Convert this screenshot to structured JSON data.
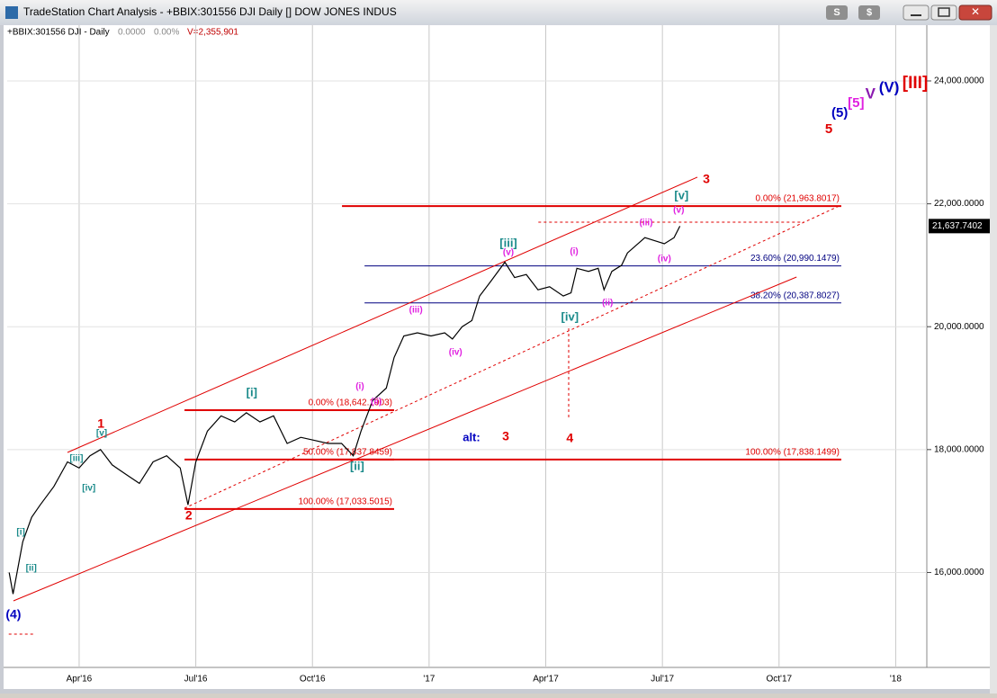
{
  "window": {
    "title": "TradeStation Chart Analysis - +BBIX:301556 DJI Daily [] DOW JONES INDUS",
    "buttons": [
      "S",
      "$"
    ]
  },
  "info": {
    "symbol": "+BBIX:301556 DJI - Daily",
    "change": "0.0000",
    "change_pct": "0.00%",
    "volume": "V=2,355,901"
  },
  "chart_data": {
    "type": "line",
    "x": [
      1.2,
      1.3,
      1.55,
      1.78,
      2.0,
      2.35,
      2.7,
      3.0,
      3.28,
      3.55,
      3.85,
      4.2,
      4.55,
      4.9,
      5.25,
      5.6,
      5.8,
      6.0,
      6.3,
      6.65,
      7.0,
      7.3,
      7.65,
      8.0,
      8.35,
      8.7,
      9.05,
      9.4,
      9.75,
      10.05,
      10.25,
      10.55,
      10.9,
      11.1,
      11.35,
      11.7,
      12.05,
      12.4,
      12.6,
      12.85,
      13.1,
      13.3,
      13.6,
      13.95,
      14.2,
      14.5,
      14.8,
      15.1,
      15.45,
      15.65,
      15.8,
      16.1,
      16.35,
      16.5,
      16.7,
      16.95,
      17.1,
      17.55,
      17.8,
      18.05,
      18.3,
      18.45
    ],
    "series": [
      {
        "color": "#000000",
        "values": [
          16000,
          15650,
          16500,
          16900,
          17100,
          17400,
          17800,
          17700,
          17900,
          18000,
          17750,
          17600,
          17450,
          17800,
          17900,
          17700,
          17100,
          17800,
          18300,
          18550,
          18450,
          18600,
          18450,
          18550,
          18100,
          18200,
          18150,
          18100,
          18100,
          17900,
          18300,
          18800,
          19000,
          19500,
          19850,
          19900,
          19850,
          19900,
          19800,
          20000,
          20100,
          20500,
          20750,
          21050,
          20800,
          20850,
          20600,
          20650,
          20500,
          20550,
          20950,
          20900,
          20950,
          20600,
          20900,
          21000,
          21200,
          21450,
          21400,
          21350,
          21450,
          21637
        ]
      }
    ],
    "xlim": [
      1.15,
      24.8
    ],
    "ylim": [
      14455,
      24673
    ],
    "xticks": [
      {
        "value": 3,
        "label": "Apr'16"
      },
      {
        "value": 6,
        "label": "Jul'16"
      },
      {
        "value": 9,
        "label": "Oct'16"
      },
      {
        "value": 12,
        "label": "'17"
      },
      {
        "value": 15,
        "label": "Apr'17"
      },
      {
        "value": 18,
        "label": "Jul'17"
      },
      {
        "value": 21,
        "label": "Oct'17"
      },
      {
        "value": 24,
        "label": "'18"
      }
    ],
    "yticks": [
      {
        "value": 16000,
        "label": "16,000.0000"
      },
      {
        "value": 18000,
        "label": "18,000.0000"
      },
      {
        "value": 20000,
        "label": "20,000.0000"
      },
      {
        "value": 22000,
        "label": "22,000.0000"
      },
      {
        "value": 24000,
        "label": "24,000.0000"
      }
    ],
    "grid": true,
    "last_price": {
      "value": 21637.7402,
      "label": "21,637.7402"
    },
    "levels": [
      {
        "label": "0.00% (21,963.8017)",
        "value": 21963.8017,
        "from": 9.76,
        "to": 22.6,
        "color": "#e00000"
      },
      {
        "label": "23.60% (20,990.1479)",
        "value": 20990.1479,
        "from": 10.34,
        "to": 22.6,
        "color": "#000080"
      },
      {
        "label": "38.20% (20,387.8027)",
        "value": 20387.8027,
        "from": 10.34,
        "to": 22.6,
        "color": "#000080"
      },
      {
        "label": "0.00% (18,642.1903)",
        "value": 18642.1903,
        "from": 5.71,
        "to": 11.1,
        "color": "#e00000"
      },
      {
        "label": "50.00% (17,837.8459)",
        "value": 17837.8459,
        "from": 5.71,
        "to": 11.1,
        "color": "#e00000"
      },
      {
        "label": "100.00% (17,838.1499)",
        "value": 17838.1499,
        "from": 9.2,
        "to": 22.6,
        "color": "#e00000"
      },
      {
        "label": "100.00% (17,033.5015)",
        "value": 17033.5015,
        "from": 5.71,
        "to": 11.1,
        "color": "#e00000"
      }
    ],
    "lines": [
      {
        "x": [
          2.7,
          18.9
        ],
        "y": [
          17954,
          22434
        ],
        "color": "#e00000",
        "dashed": false
      },
      {
        "x": [
          1.31,
          21.45
        ],
        "y": [
          15538,
          20808
        ],
        "color": "#e00000",
        "dashed": false
      },
      {
        "x": [
          5.71,
          22.6
        ],
        "y": [
          17046,
          21980
        ],
        "color": "#e00000",
        "dashed": true
      },
      {
        "x": [
          15.59,
          15.59
        ],
        "y": [
          19974,
          18510
        ],
        "color": "#e00000",
        "dashed": true
      },
      {
        "x": [
          14.81,
          21.64
        ],
        "y": [
          21702,
          21702
        ],
        "color": "#e00000",
        "dashed": true
      },
      {
        "x": [
          1.19,
          1.84
        ],
        "y": [
          14996,
          14996
        ],
        "color": "#e00000",
        "dashed": true
      }
    ],
    "annotations": [
      {
        "text": "(4)",
        "x": 1.31,
        "y": 15304,
        "color": "#0000c0",
        "size": 14
      },
      {
        "text": "[i]",
        "x": 1.5,
        "y": 16651,
        "color": "#1a8a8a",
        "size": 10
      },
      {
        "text": "[ii]",
        "x": 1.77,
        "y": 16065,
        "color": "#1a8a8a",
        "size": 10
      },
      {
        "text": "[iii]",
        "x": 2.93,
        "y": 17851,
        "color": "#1a8a8a",
        "size": 10
      },
      {
        "text": "[iv]",
        "x": 3.25,
        "y": 17368,
        "color": "#1a8a8a",
        "size": 10
      },
      {
        "text": "[v]",
        "x": 3.58,
        "y": 18261,
        "color": "#1a8a8a",
        "size": 10
      },
      {
        "text": "1",
        "x": 3.56,
        "y": 18408,
        "color": "#e00000",
        "size": 14
      },
      {
        "text": "2",
        "x": 5.82,
        "y": 16914,
        "color": "#e00000",
        "size": 14
      },
      {
        "text": "[i]",
        "x": 7.44,
        "y": 18920,
        "color": "#1a8a8a",
        "size": 13
      },
      {
        "text": "[ii]",
        "x": 10.15,
        "y": 17719,
        "color": "#1a8a8a",
        "size": 13
      },
      {
        "text": "(i)",
        "x": 10.22,
        "y": 19022,
        "color": "#e020e0",
        "size": 10
      },
      {
        "text": "(ii)",
        "x": 10.64,
        "y": 18773,
        "color": "#e020e0",
        "size": 10
      },
      {
        "text": "(iii)",
        "x": 11.66,
        "y": 20267,
        "color": "#e020e0",
        "size": 10
      },
      {
        "text": "(iv)",
        "x": 12.68,
        "y": 19579,
        "color": "#e020e0",
        "size": 10
      },
      {
        "text": "[iii]",
        "x": 14.04,
        "y": 21350,
        "color": "#1a8a8a",
        "size": 13
      },
      {
        "text": "(v)",
        "x": 14.04,
        "y": 21204,
        "color": "#e020e0",
        "size": 10
      },
      {
        "text": "[iv]",
        "x": 15.62,
        "y": 20150,
        "color": "#1a8a8a",
        "size": 13
      },
      {
        "text": "(i)",
        "x": 15.73,
        "y": 21218,
        "color": "#e020e0",
        "size": 10
      },
      {
        "text": "(ii)",
        "x": 16.59,
        "y": 20384,
        "color": "#e020e0",
        "size": 10
      },
      {
        "text": "(iii)",
        "x": 17.58,
        "y": 21687,
        "color": "#e020e0",
        "size": 10
      },
      {
        "text": "(iv)",
        "x": 18.05,
        "y": 21101,
        "color": "#e020e0",
        "size": 10
      },
      {
        "text": "(v)",
        "x": 18.42,
        "y": 21892,
        "color": "#e020e0",
        "size": 10
      },
      {
        "text": "[v]",
        "x": 18.49,
        "y": 22126,
        "color": "#1a8a8a",
        "size": 13
      },
      {
        "text": "3",
        "x": 19.13,
        "y": 22390,
        "color": "#e00000",
        "size": 14
      },
      {
        "text": "alt:",
        "x": 13.09,
        "y": 18188,
        "color": "#0000c0",
        "size": 13
      },
      {
        "text": "3",
        "x": 13.97,
        "y": 18203,
        "color": "#e00000",
        "size": 14
      },
      {
        "text": "4",
        "x": 15.62,
        "y": 18173,
        "color": "#e00000",
        "size": 14
      },
      {
        "text": "5",
        "x": 22.28,
        "y": 23209,
        "color": "#e00000",
        "size": 15
      },
      {
        "text": "(5)",
        "x": 22.56,
        "y": 23473,
        "color": "#0000c0",
        "size": 15
      },
      {
        "text": "[5]",
        "x": 22.98,
        "y": 23634,
        "color": "#e020e0",
        "size": 15
      },
      {
        "text": "V",
        "x": 23.35,
        "y": 23780,
        "color": "#8a1ab0",
        "size": 17
      },
      {
        "text": "(V)",
        "x": 23.83,
        "y": 23883,
        "color": "#0000c0",
        "size": 17
      },
      {
        "text": "[III]",
        "x": 24.5,
        "y": 23956,
        "color": "#e00000",
        "size": 19
      }
    ]
  }
}
